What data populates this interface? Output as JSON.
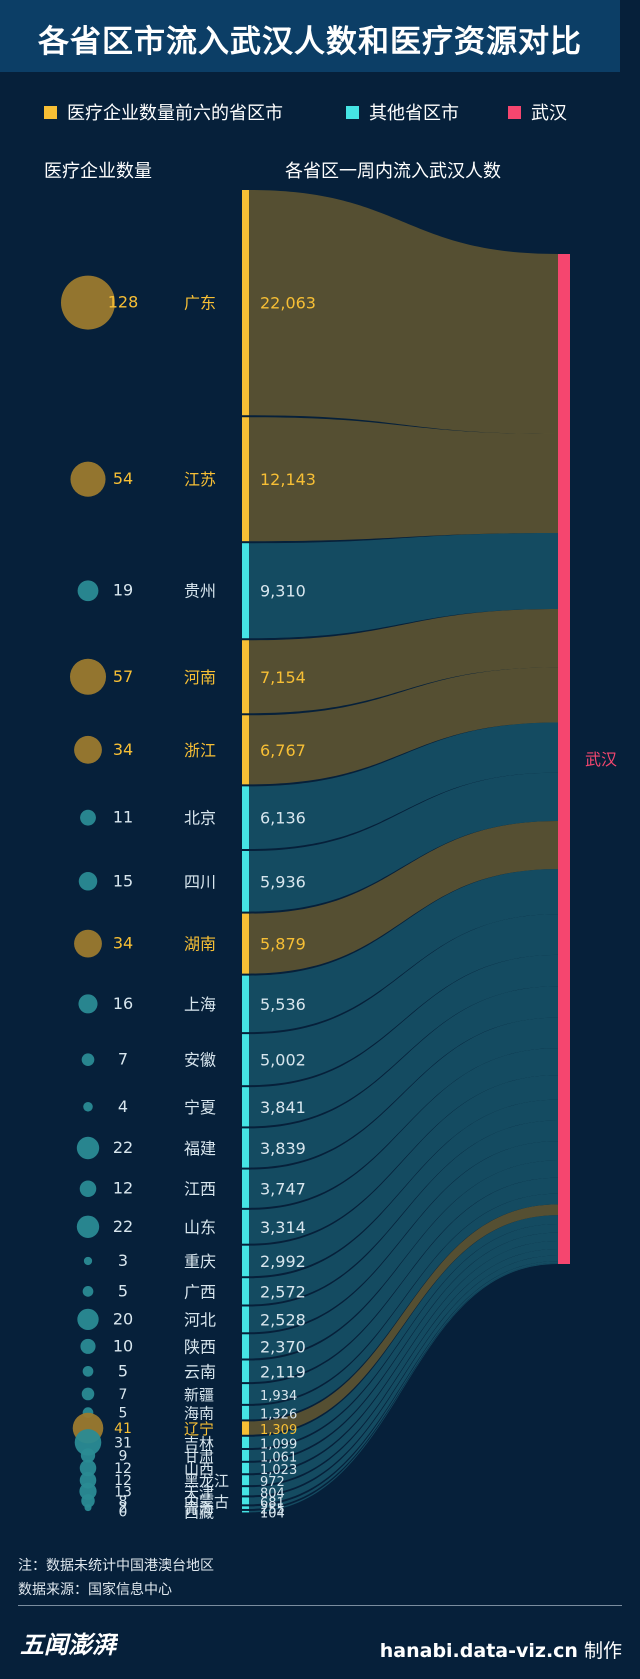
{
  "title": "各省区市流入武汉人数和医疗资源对比",
  "legend": [
    {
      "label": "医疗企业数量前六的省区市",
      "color": "#f7bf35"
    },
    {
      "label": "其他省区市",
      "color": "#45e4e4"
    },
    {
      "label": "武汉",
      "color": "#f5466f"
    }
  ],
  "col_heads": {
    "left": "医疗企业数量",
    "right": "各省区一周内流入武汉人数"
  },
  "chart_data": {
    "type": "sankey",
    "target": "武汉",
    "colors": {
      "top": "#f7bf35",
      "other": "#45e4e4",
      "target": "#f5466f",
      "top_flow": "#5a5232",
      "other_flow": "#154e63",
      "top_bubble": "#9b7a2e",
      "other_bubble": "#2a8b93"
    },
    "rows": [
      {
        "name": "广东",
        "value": 22063,
        "label": "22,063",
        "companies": 128,
        "top": true
      },
      {
        "name": "江苏",
        "value": 12143,
        "label": "12,143",
        "companies": 54,
        "top": true
      },
      {
        "name": "贵州",
        "value": 9310,
        "label": "9,310",
        "companies": 19,
        "top": false
      },
      {
        "name": "河南",
        "value": 7154,
        "label": "7,154",
        "companies": 57,
        "top": true
      },
      {
        "name": "浙江",
        "value": 6767,
        "label": "6,767",
        "companies": 34,
        "top": true
      },
      {
        "name": "北京",
        "value": 6136,
        "label": "6,136",
        "companies": 11,
        "top": false
      },
      {
        "name": "四川",
        "value": 5936,
        "label": "5,936",
        "companies": 15,
        "top": false
      },
      {
        "name": "湖南",
        "value": 5879,
        "label": "5,879",
        "companies": 34,
        "top": true
      },
      {
        "name": "上海",
        "value": 5536,
        "label": "5,536",
        "companies": 16,
        "top": false
      },
      {
        "name": "安徽",
        "value": 5002,
        "label": "5,002",
        "companies": 7,
        "top": false
      },
      {
        "name": "宁夏",
        "value": 3841,
        "label": "3,841",
        "companies": 4,
        "top": false
      },
      {
        "name": "福建",
        "value": 3839,
        "label": "3,839",
        "companies": 22,
        "top": false
      },
      {
        "name": "江西",
        "value": 3747,
        "label": "3,747",
        "companies": 12,
        "top": false
      },
      {
        "name": "山东",
        "value": 3314,
        "label": "3,314",
        "companies": 22,
        "top": false
      },
      {
        "name": "重庆",
        "value": 2992,
        "label": "2,992",
        "companies": 3,
        "top": false
      },
      {
        "name": "广西",
        "value": 2572,
        "label": "2,572",
        "companies": 5,
        "top": false
      },
      {
        "name": "河北",
        "value": 2528,
        "label": "2,528",
        "companies": 20,
        "top": false
      },
      {
        "name": "陕西",
        "value": 2370,
        "label": "2,370",
        "companies": 10,
        "top": false
      },
      {
        "name": "云南",
        "value": 2119,
        "label": "2,119",
        "companies": 5,
        "top": false
      },
      {
        "name": "新疆",
        "value": 1934,
        "label": "1,934",
        "companies": 7,
        "top": false
      },
      {
        "name": "海南",
        "value": 1326,
        "label": "1,326",
        "companies": 5,
        "top": false
      },
      {
        "name": "辽宁",
        "value": 1309,
        "label": "1,309",
        "companies": 41,
        "top": true
      },
      {
        "name": "吉林",
        "value": 1099,
        "label": "1,099",
        "companies": 31,
        "top": false
      },
      {
        "name": "甘肃",
        "value": 1061,
        "label": "1,061",
        "companies": 9,
        "top": false
      },
      {
        "name": "山西",
        "value": 1023,
        "label": "1,023",
        "companies": 12,
        "top": false
      },
      {
        "name": "黑龙江",
        "value": 972,
        "label": "972",
        "companies": 12,
        "top": false
      },
      {
        "name": "天津",
        "value": 804,
        "label": "804",
        "companies": 13,
        "top": false
      },
      {
        "name": "内蒙古",
        "value": 681,
        "label": "681",
        "companies": 8,
        "top": false
      },
      {
        "name": "青海",
        "value": 255,
        "label": "255",
        "companies": 2,
        "top": false
      },
      {
        "name": "西藏",
        "value": 104,
        "label": "104",
        "companies": 0,
        "top": false
      }
    ]
  },
  "notes": {
    "note": "注：数据未统计中国港澳台地区",
    "source": "数据来源：国家信息中心"
  },
  "logo_text": "五闻澎湃",
  "credit": {
    "url": "hanabi.data-viz.cn",
    "suffix": " 制作"
  }
}
